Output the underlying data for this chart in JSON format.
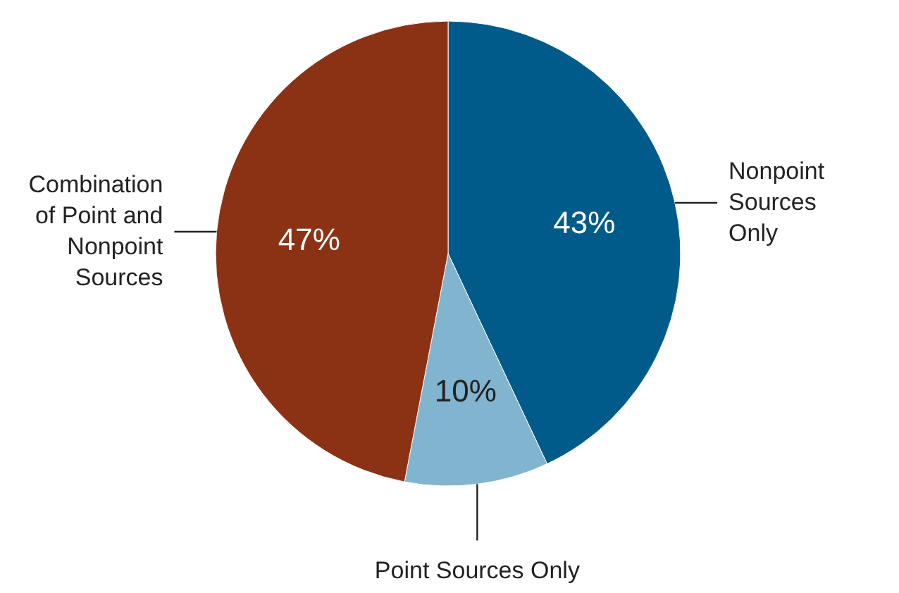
{
  "chart_data": {
    "type": "pie",
    "categories": [
      "Nonpoint Sources Only",
      "Point Sources Only",
      "Combination of Point and Nonpoint Sources"
    ],
    "values": [
      43,
      10,
      47
    ],
    "colors": [
      "#015b8a",
      "#80b4cf",
      "#8c3214"
    ],
    "value_labels": [
      "43%",
      "10%",
      "47%"
    ]
  }
}
